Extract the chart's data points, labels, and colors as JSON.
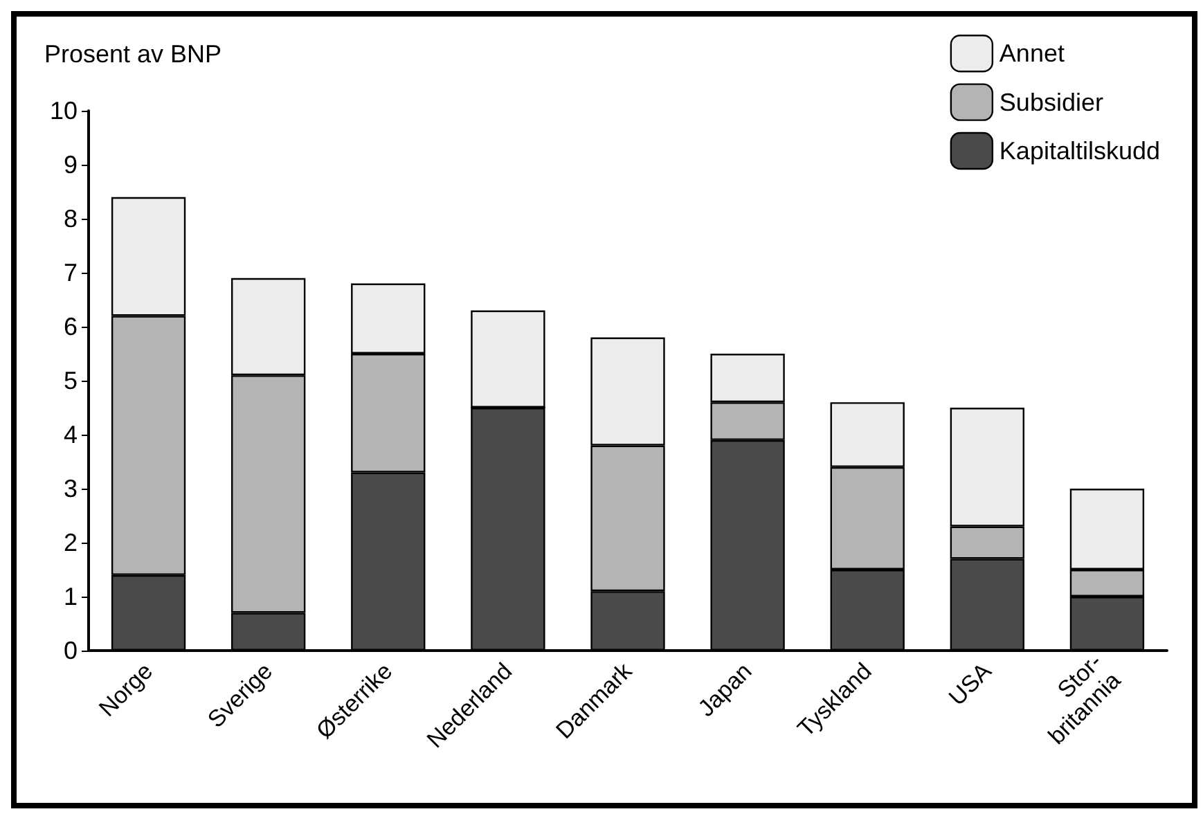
{
  "chart_data": {
    "type": "bar",
    "stacked": true,
    "ylabel": "Prosent av BNP",
    "categories": [
      "Norge",
      "Sverige",
      "Østerrike",
      "Nederland",
      "Danmark",
      "Japan",
      "Tyskland",
      "USA",
      "Stor-\nbritannia"
    ],
    "series": [
      {
        "name": "Kapitaltilskudd",
        "color": "#4a4a4a",
        "values": [
          1.4,
          0.7,
          3.3,
          4.5,
          1.1,
          3.9,
          1.5,
          1.7,
          1.0
        ]
      },
      {
        "name": "Subsidier",
        "color": "#b4b4b4",
        "values": [
          4.8,
          4.4,
          2.2,
          0,
          2.7,
          0.7,
          1.9,
          0.6,
          0.5
        ]
      },
      {
        "name": "Annet",
        "color": "#ececec",
        "values": [
          2.2,
          1.8,
          1.3,
          1.8,
          2.0,
          0.9,
          1.2,
          2.2,
          1.5
        ]
      }
    ],
    "ylim": [
      0,
      10
    ],
    "yticks": [
      0,
      1,
      2,
      3,
      4,
      5,
      6,
      7,
      8,
      9,
      10
    ],
    "grid": false,
    "legend": "top right"
  }
}
